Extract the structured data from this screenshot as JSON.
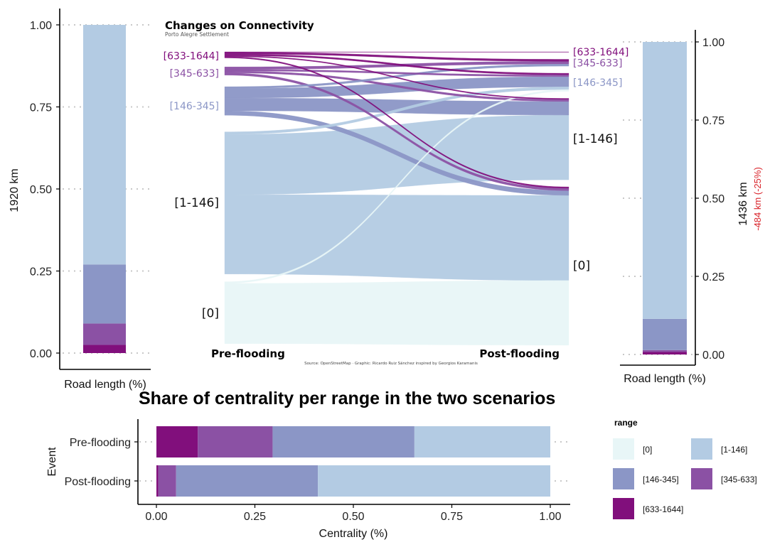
{
  "colors": {
    "[0]": "#e8f6f7",
    "[1-146]": "#b3cbe3",
    "[146-345]": "#8b96c6",
    "[345-633]": "#8b51a4",
    "[633-1644]": "#810f7c",
    "grid": "#c8c8c8",
    "axis": "#000000",
    "loss": "#d9242b"
  },
  "ranges": [
    "[0]",
    "[1-146]",
    "[146-345]",
    "[345-633]",
    "[633-1644]"
  ],
  "chart_data": [
    {
      "type": "bar",
      "id": "pre-bar",
      "stacked": true,
      "ylabel": "1920 km",
      "xlabel": "Road length (%)",
      "ylim": [
        0,
        1
      ],
      "ticks": [
        "0.00",
        "0.25",
        "0.50",
        "0.75",
        "1.00"
      ],
      "grid": true,
      "series": [
        {
          "name": "[0]",
          "value": 0.0
        },
        {
          "name": "[1-146]",
          "value": 0.73
        },
        {
          "name": "[146-345]",
          "value": 0.18
        },
        {
          "name": "[345-633]",
          "value": 0.065
        },
        {
          "name": "[633-1644]",
          "value": 0.025
        }
      ]
    },
    {
      "type": "bar",
      "id": "post-bar",
      "stacked": true,
      "ylabel": "1436 km",
      "loss_label": "-484 km (-25%)",
      "xlabel": "Road length (%)",
      "ylim": [
        0,
        1
      ],
      "ticks": [
        "0.00",
        "0.25",
        "0.50",
        "0.75",
        "1.00"
      ],
      "grid": true,
      "series": [
        {
          "name": "[0]",
          "value": 0.0
        },
        {
          "name": "[1-146]",
          "value": 0.886
        },
        {
          "name": "[146-345]",
          "value": 0.1
        },
        {
          "name": "[345-633]",
          "value": 0.006
        },
        {
          "name": "[633-1644]",
          "value": 0.008
        }
      ]
    },
    {
      "type": "sankey",
      "id": "alluvial",
      "title": "Changes on Connectivity",
      "subtitle": "Porto Alegre Settlement",
      "caption": "Source: OpenStreetMap · Graphic: Ricardo Ruiz Sánchez inspired by Georgios Karamanis",
      "stages": [
        "Pre-flooding",
        "Post-flooding"
      ],
      "left_nodes": [
        {
          "name": "[633-1644]",
          "value": 0.025
        },
        {
          "name": "[345-633]",
          "value": 0.04
        },
        {
          "name": "[146-345]",
          "value": 0.12
        },
        {
          "name": "[1-146]",
          "value": 0.45
        },
        {
          "name": "[0]",
          "value": 0.2
        }
      ],
      "right_nodes": [
        {
          "name": "[633-1644]",
          "value": 0.0
        },
        {
          "name": "[345-633]",
          "value": 0.03
        },
        {
          "name": "[146-345]",
          "value": 0.03
        },
        {
          "name": "[1-146]",
          "value": 0.35
        },
        {
          "name": "[0]",
          "value": 0.51
        }
      ],
      "flows": [
        {
          "from": "[633-1644]",
          "to": "[633-1644]",
          "value": 0.001
        },
        {
          "from": "[633-1644]",
          "to": "[345-633]",
          "value": 0.006
        },
        {
          "from": "[633-1644]",
          "to": "[146-345]",
          "value": 0.005
        },
        {
          "from": "[633-1644]",
          "to": "[1-146]",
          "value": 0.003
        },
        {
          "from": "[633-1644]",
          "to": "[0]",
          "value": 0.004
        },
        {
          "from": "[345-633]",
          "to": "[345-633]",
          "value": 0.008
        },
        {
          "from": "[345-633]",
          "to": "[146-345]",
          "value": 0.005
        },
        {
          "from": "[345-633]",
          "to": "[1-146]",
          "value": 0.006
        },
        {
          "from": "[345-633]",
          "to": "[0]",
          "value": 0.007
        },
        {
          "from": "[146-345]",
          "to": "[345-633]",
          "value": 0.006
        },
        {
          "from": "[146-345]",
          "to": "[146-345]",
          "value": 0.03
        },
        {
          "from": "[146-345]",
          "to": "[1-146]",
          "value": 0.04
        },
        {
          "from": "[146-345]",
          "to": "[0]",
          "value": 0.014
        },
        {
          "from": "[1-146]",
          "to": "[146-345]",
          "value": 0.008
        },
        {
          "from": "[1-146]",
          "to": "[1-146]",
          "value": 0.19
        },
        {
          "from": "[1-146]",
          "to": "[0]",
          "value": 0.25
        },
        {
          "from": "[0]",
          "to": "[146-345]",
          "value": 0.005
        },
        {
          "from": "[0]",
          "to": "[0]",
          "value": 0.19
        }
      ]
    },
    {
      "type": "bar",
      "id": "centrality",
      "orientation": "horizontal",
      "stacked": true,
      "title": "Share of centrality per range in the two scenarios",
      "xlabel": "Centrality (%)",
      "ylabel": "Event",
      "xlim": [
        0,
        1
      ],
      "ticks": [
        "0.00",
        "0.25",
        "0.50",
        "0.75",
        "1.00"
      ],
      "categories": [
        "Pre-flooding",
        "Post-flooding"
      ],
      "series": [
        {
          "name": "[633-1644]",
          "values": [
            0.105,
            0.005
          ]
        },
        {
          "name": "[345-633]",
          "values": [
            0.19,
            0.045
          ]
        },
        {
          "name": "[146-345]",
          "values": [
            0.36,
            0.36
          ]
        },
        {
          "name": "[1-146]",
          "values": [
            0.345,
            0.59
          ]
        },
        {
          "name": "[0]",
          "values": [
            0.0,
            0.0
          ]
        }
      ],
      "legend": {
        "title": "range",
        "position": "right",
        "items": [
          "[0]",
          "[1-146]",
          "[146-345]",
          "[345-633]",
          "[633-1644]"
        ]
      }
    }
  ]
}
